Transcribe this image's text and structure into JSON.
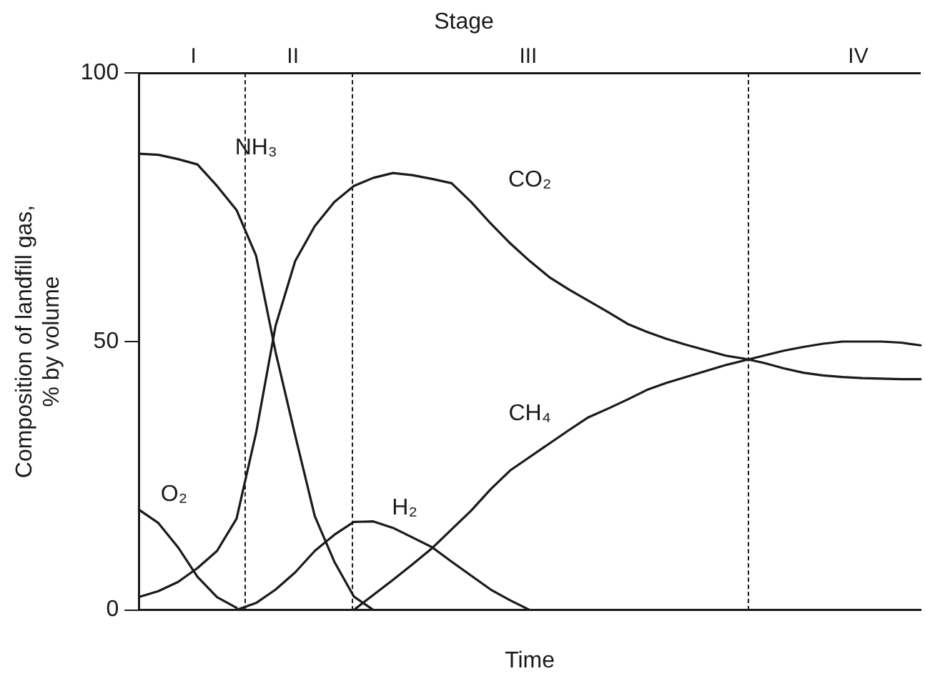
{
  "chart_data": {
    "type": "line",
    "title": "Stage",
    "annotations": [
      "I",
      "II",
      "III",
      "IV"
    ],
    "xlabel": "Time",
    "ylabel": "Composition of landfill gas,\n% by volume",
    "categories": [
      null,
      null,
      null,
      null,
      null,
      null,
      null,
      null,
      null,
      null,
      null,
      null,
      null,
      null,
      null,
      null,
      null,
      null,
      null,
      null,
      null,
      null,
      null,
      null,
      null,
      null,
      null,
      null,
      null,
      null,
      null,
      null,
      null,
      null,
      null,
      null,
      null,
      null,
      null,
      null,
      null
    ],
    "ylim": [
      0,
      100
    ],
    "yticks": [
      0,
      50,
      100
    ],
    "grid": false,
    "legend": false,
    "marker": "none",
    "line_style": "solid",
    "series": [
      {
        "name": "O₂",
        "color": "#1a1a1a",
        "values": [
          18.7,
          16.2,
          11.7,
          6.2,
          2.4,
          0.4,
          null,
          null,
          null,
          null,
          null,
          null,
          null,
          null,
          null,
          null,
          null,
          null,
          null,
          null,
          null,
          null,
          null,
          null,
          null,
          null,
          null,
          null,
          null,
          null,
          null,
          null,
          null,
          null,
          null,
          null,
          null,
          null,
          null,
          null,
          null
        ]
      },
      {
        "name": "NH₃",
        "color": "#1a1a1a",
        "values": [
          85,
          84.8,
          84,
          83,
          79,
          74.5,
          66,
          48,
          32.5,
          17.5,
          9,
          2.5,
          0,
          null,
          null,
          null,
          null,
          null,
          null,
          null,
          null,
          null,
          null,
          null,
          null,
          null,
          null,
          null,
          null,
          null,
          null,
          null,
          null,
          null,
          null,
          null,
          null,
          null,
          null,
          null,
          null
        ]
      },
      {
        "name": "CO₂",
        "color": "#1a1a1a",
        "values": [
          2.4,
          3.5,
          5.2,
          7.8,
          11,
          17,
          33,
          53,
          65,
          71.5,
          76,
          79,
          80.5,
          81.4,
          81,
          80.3,
          79.5,
          76,
          72,
          68.3,
          65,
          62,
          59.7,
          57.6,
          55.5,
          53.3,
          51.8,
          50.5,
          49.4,
          48.4,
          47.4,
          46.8,
          46,
          45,
          44.2,
          43.7,
          43.4,
          43.2,
          43.1,
          43,
          43
        ]
      },
      {
        "name": "H₂",
        "color": "#1a1a1a",
        "values": [
          null,
          null,
          null,
          null,
          null,
          0,
          1.3,
          3.8,
          7,
          11,
          14,
          16.4,
          16.5,
          15.3,
          13.5,
          11.7,
          9,
          6.4,
          3.8,
          1.8,
          0,
          null,
          null,
          null,
          null,
          null,
          null,
          null,
          null,
          null,
          null,
          null,
          null,
          null,
          null,
          null,
          null,
          null,
          null,
          null,
          null
        ]
      },
      {
        "name": "CH₄",
        "color": "#1a1a1a",
        "values": [
          null,
          null,
          null,
          null,
          null,
          null,
          null,
          null,
          null,
          null,
          null,
          0,
          2.8,
          5.6,
          8.5,
          11.5,
          15,
          18.5,
          22.5,
          26,
          28.5,
          31,
          33.5,
          35.9,
          37.5,
          39.2,
          41,
          42.3,
          43.4,
          44.5,
          45.6,
          46.5,
          47.4,
          48.3,
          49,
          49.6,
          50,
          50,
          50,
          49.8,
          49.3
        ]
      }
    ]
  }
}
